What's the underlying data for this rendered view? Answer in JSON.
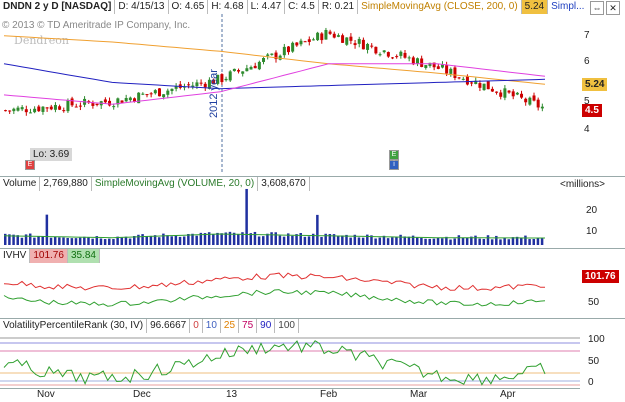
{
  "header": {
    "symbol": "DNDN 2 y D [NASDAQ]",
    "date": "D: 4/15/13",
    "open": "O: 4.65",
    "high": "H: 4.68",
    "low": "L: 4.47",
    "close": "C: 4.5",
    "range": "R: 0.21",
    "study": "SimpleMovingAvg (CLOSE, 200, 0)",
    "study_value": "5.24",
    "study_short": "Simpl..."
  },
  "copyright": "© 2013 © TD Ameritrade IP Company, Inc.",
  "watermark": "Dendreon",
  "price_panel": {
    "axis": [
      "7",
      "6",
      "5",
      "4"
    ],
    "sma_tag": "5.24",
    "last_tag": "4.5",
    "low_label": "Lo: 3.69",
    "year_label": "2012 year"
  },
  "volume_panel": {
    "label": "Volume",
    "value": "2,769,880",
    "study": "SimpleMovingAvg (VOLUME, 20, 0)",
    "study_value": "3,608,670",
    "units": "<millions>",
    "axis": [
      "20",
      "10"
    ]
  },
  "ivhv_panel": {
    "label": "IVHV",
    "iv_value": "101.76",
    "hv_value": "35.84",
    "tag": "101.76",
    "axis": [
      "50"
    ]
  },
  "vpr_panel": {
    "label": "VolatilityPercentileRank (30, IV)",
    "value": "96.6667",
    "levels": [
      "0",
      "10",
      "25",
      "75",
      "90",
      "100"
    ],
    "axis": [
      "100",
      "50",
      "0"
    ]
  },
  "x_axis": [
    "Nov",
    "Dec",
    "13",
    "Feb",
    "Mar",
    "Apr"
  ],
  "colors": {
    "up": "#2e8b2e",
    "down": "#cc0000",
    "sma200": "#f0a030",
    "ma_blue": "#2020c0",
    "ma_magenta": "#e040e0",
    "iv": "#e03030",
    "hv": "#30a030"
  },
  "chart_data": [
    {
      "type": "line",
      "title": "DNDN 2 y D [NASDAQ]",
      "x": [
        "Nov",
        "Dec",
        "13",
        "Feb",
        "Mar",
        "Apr"
      ],
      "series": [
        {
          "name": "Close",
          "values": [
            4.4,
            4.7,
            5.4,
            6.9,
            5.8,
            4.5
          ]
        },
        {
          "name": "SimpleMovingAvg (CLOSE, 200, 0)",
          "values": [
            6.8,
            6.6,
            6.3,
            5.9,
            5.6,
            5.24
          ]
        }
      ],
      "ylim": [
        3,
        7.5
      ]
    },
    {
      "type": "bar",
      "title": "Volume",
      "categories": [
        "Nov",
        "Dec",
        "13",
        "Feb",
        "Mar",
        "Apr"
      ],
      "values": [
        4,
        3,
        5,
        4,
        3,
        2.8
      ],
      "ylim": [
        0,
        30
      ]
    }
  ]
}
